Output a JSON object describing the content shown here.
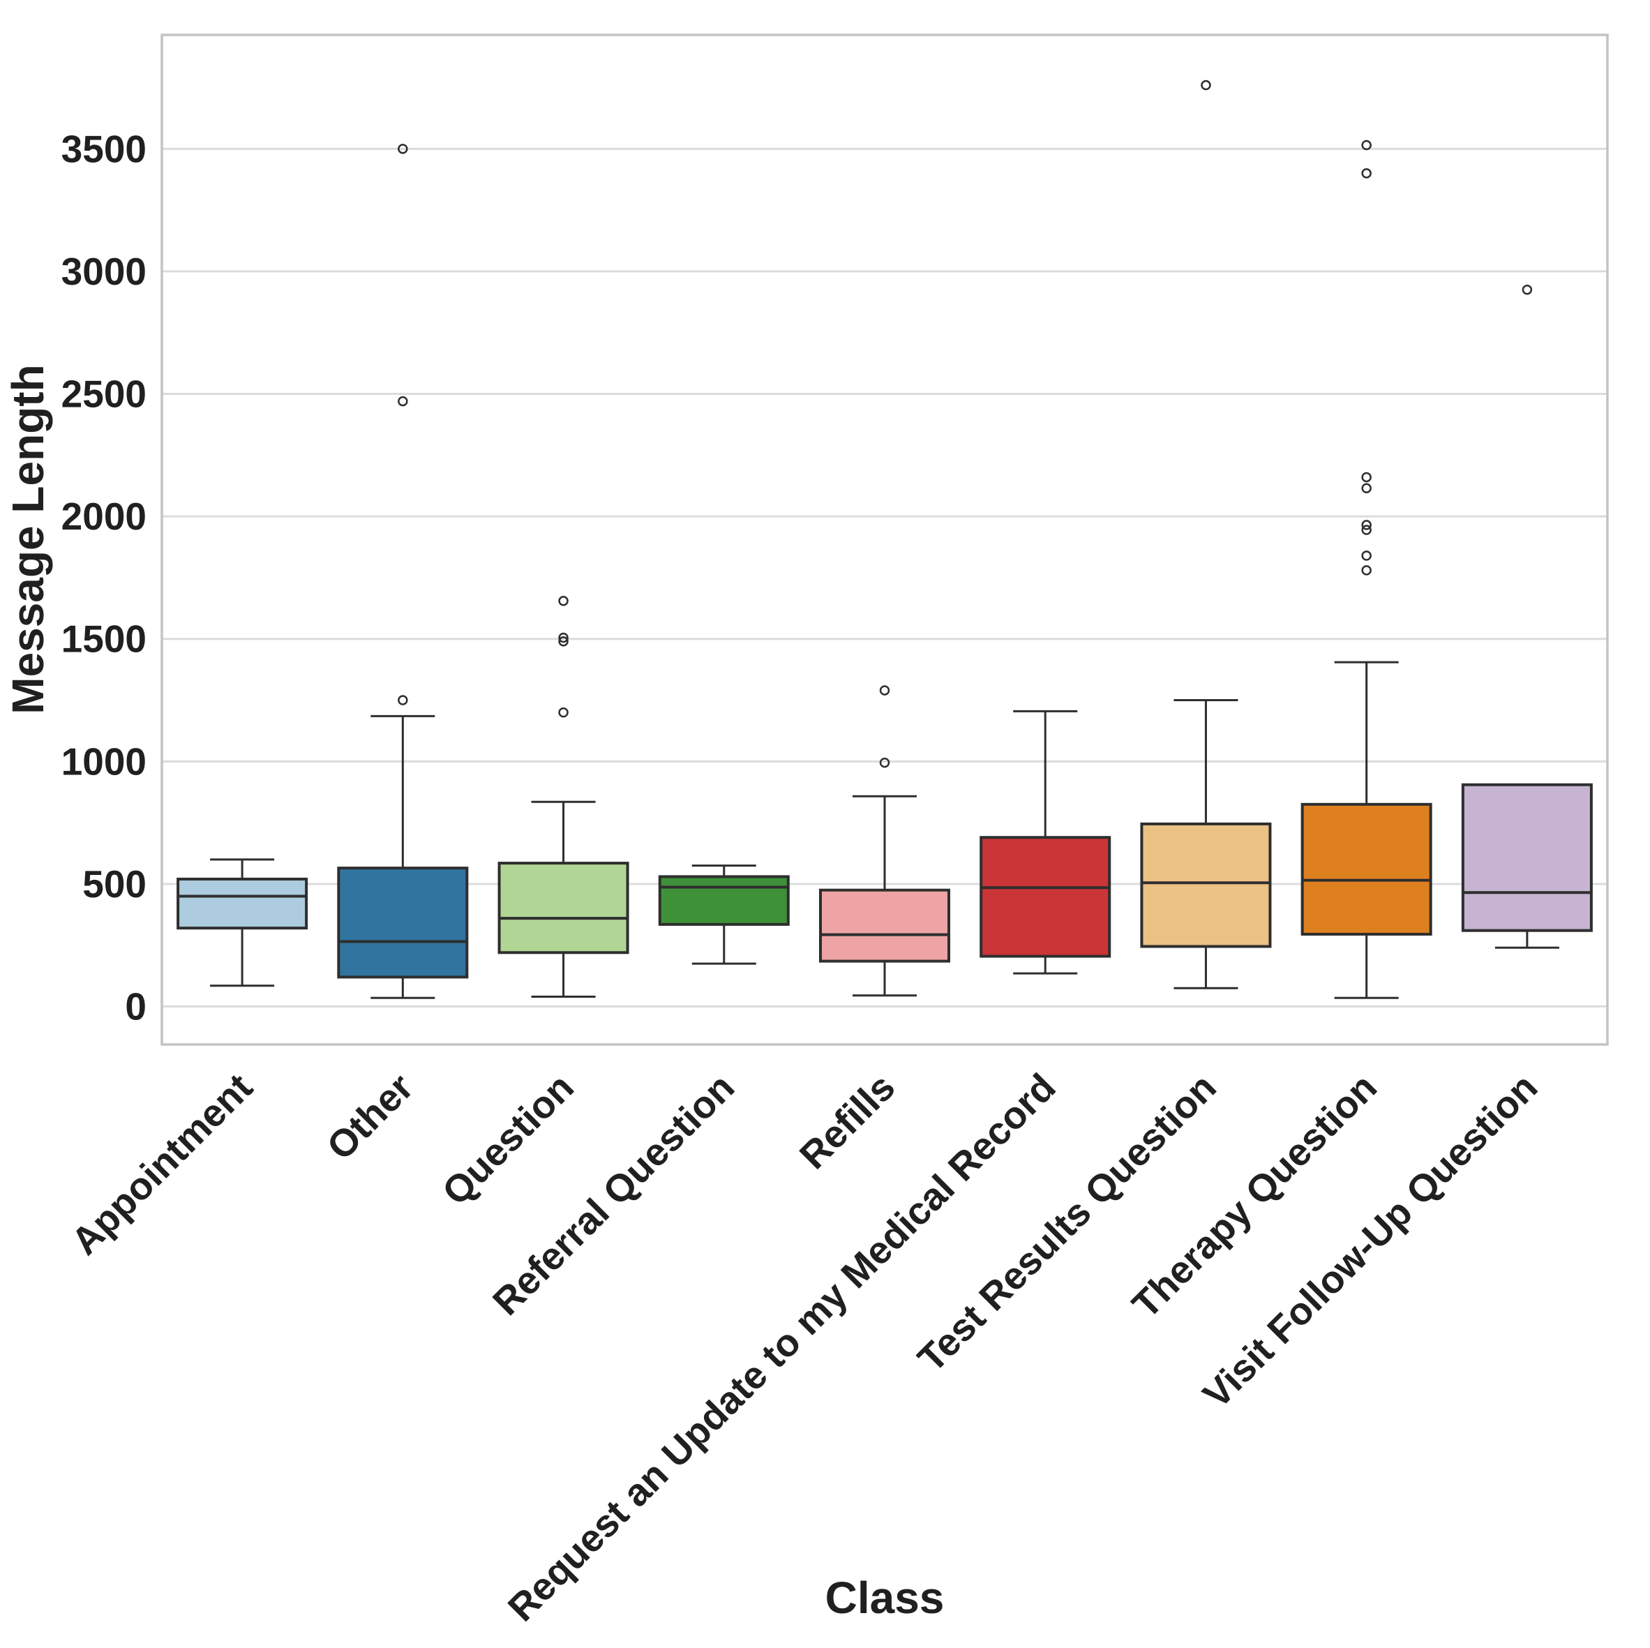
{
  "figure": {
    "background": "#ffffff"
  },
  "chart_data": {
    "type": "box",
    "title": "",
    "xlabel": "Class",
    "ylabel": "Message Length",
    "ylim": [
      -155,
      3965
    ],
    "yticks": [
      0,
      500,
      1000,
      1500,
      2000,
      2500,
      3000,
      3500
    ],
    "grid": "horizontal",
    "legend_position": "none",
    "categories": [
      "Appointment",
      "Other",
      "Question",
      "Referral Question",
      "Refills",
      "Request an Update to my Medical Record",
      "Test Results Question",
      "Therapy Question",
      "Visit Follow-Up Question"
    ],
    "series": [
      {
        "label": "Appointment",
        "color": "#adccdf",
        "whisker_low": 85,
        "q1": 320,
        "median": 450,
        "q3": 520,
        "whisker_high": 600,
        "outliers": []
      },
      {
        "label": "Other",
        "color": "#3174a0",
        "whisker_low": 35,
        "q1": 120,
        "median": 265,
        "q3": 565,
        "whisker_high": 1185,
        "outliers": [
          1250,
          2470,
          3500
        ]
      },
      {
        "label": "Question",
        "color": "#b1d595",
        "whisker_low": 40,
        "q1": 220,
        "median": 360,
        "q3": 585,
        "whisker_high": 835,
        "outliers": [
          1200,
          1490,
          1505,
          1655
        ]
      },
      {
        "label": "Referral Question",
        "color": "#3e9139",
        "whisker_low": 175,
        "q1": 335,
        "median": 487,
        "q3": 530,
        "whisker_high": 575,
        "outliers": []
      },
      {
        "label": "Refills",
        "color": "#eea4a4",
        "whisker_low": 45,
        "q1": 185,
        "median": 293,
        "q3": 475,
        "whisker_high": 858,
        "outliers": [
          995,
          1290
        ]
      },
      {
        "label": "Request an Update to my Medical Record",
        "color": "#cb3537",
        "whisker_low": 135,
        "q1": 205,
        "median": 485,
        "q3": 690,
        "whisker_high": 1205,
        "outliers": []
      },
      {
        "label": "Test Results Question",
        "color": "#ecc184",
        "whisker_low": 75,
        "q1": 245,
        "median": 505,
        "q3": 745,
        "whisker_high": 1250,
        "outliers": [
          3760
        ]
      },
      {
        "label": "Therapy Question",
        "color": "#df8020",
        "whisker_low": 35,
        "q1": 295,
        "median": 515,
        "q3": 825,
        "whisker_high": 1405,
        "outliers": [
          1780,
          1840,
          1945,
          1965,
          2115,
          2160,
          3400,
          3515
        ]
      },
      {
        "label": "Visit Follow-Up Question",
        "color": "#c7b4d2",
        "whisker_low": 240,
        "q1": 310,
        "median": 465,
        "q3": 905,
        "whisker_high": 905,
        "outliers": [
          2925
        ]
      }
    ],
    "styles": {
      "grid_color": "#dcdcdc",
      "frame_color": "#c3c3c3",
      "line_color": "#2e2e2e",
      "text_color": "#202020",
      "outlier_fill": "none",
      "plot_background": "#ffffff"
    }
  }
}
